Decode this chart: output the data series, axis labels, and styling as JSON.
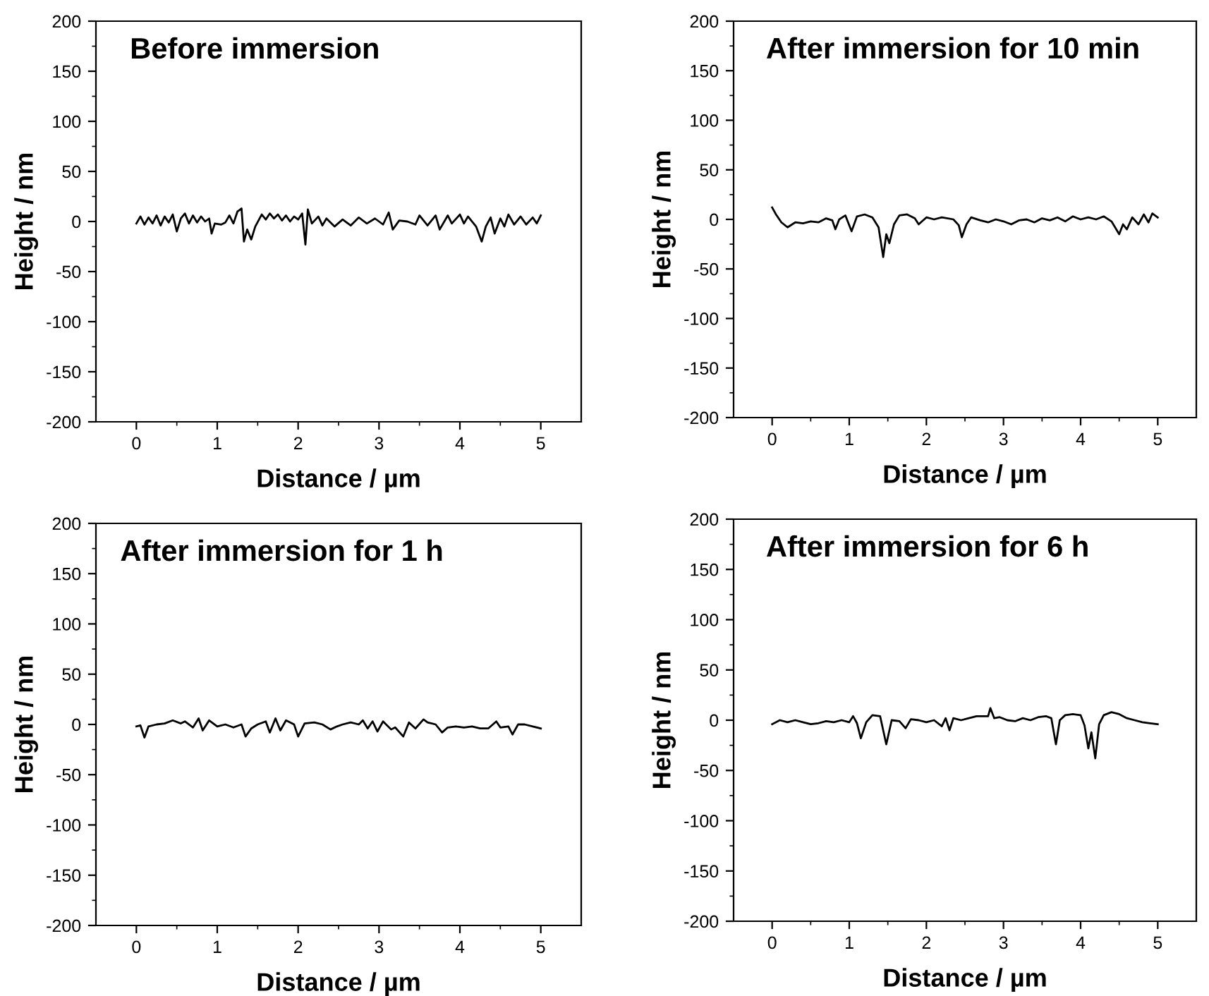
{
  "chart_data": [
    {
      "type": "line",
      "title": "Before immersion",
      "xlabel": "Distance / µm",
      "ylabel": "Height / nm",
      "xlim": [
        -0.5,
        5.5
      ],
      "ylim": [
        -200,
        200
      ],
      "xticks": [
        0,
        {
          "value": 0.5,
          "label": null
        },
        1,
        {
          "value": 1.5,
          "label": null
        },
        2,
        {
          "value": 2.5,
          "label": null
        },
        3,
        {
          "value": 3.5,
          "label": null
        },
        4,
        {
          "value": 4.5,
          "label": null
        },
        5
      ],
      "yticks": [
        -200,
        {
          "value": -175,
          "label": null
        },
        -150,
        {
          "value": -125,
          "label": null
        },
        -100,
        {
          "value": -75,
          "label": null
        },
        -50,
        {
          "value": -25,
          "label": null
        },
        0,
        {
          "value": 25,
          "label": null
        },
        50,
        {
          "value": 75,
          "label": null
        },
        100,
        {
          "value": 125,
          "label": null
        },
        150,
        {
          "value": 175,
          "label": null
        },
        200
      ],
      "grid": false,
      "legend": false,
      "series": [
        {
          "color": "#000000",
          "x": [
            0,
            0.05,
            0.1,
            0.15,
            0.2,
            0.25,
            0.3,
            0.35,
            0.4,
            0.45,
            0.5,
            0.55,
            0.6,
            0.65,
            0.7,
            0.75,
            0.8,
            0.85,
            0.9,
            0.93,
            0.97,
            1.05,
            1.1,
            1.15,
            1.2,
            1.25,
            1.3,
            1.33,
            1.37,
            1.42,
            1.47,
            1.55,
            1.6,
            1.65,
            1.7,
            1.75,
            1.8,
            1.85,
            1.9,
            1.95,
            2.0,
            2.05,
            2.09,
            2.12,
            2.17,
            2.25,
            2.3,
            2.35,
            2.45,
            2.55,
            2.65,
            2.75,
            2.85,
            2.95,
            3.05,
            3.12,
            3.17,
            3.25,
            3.35,
            3.45,
            3.5,
            3.6,
            3.7,
            3.75,
            3.85,
            3.9,
            4.0,
            4.05,
            4.1,
            4.2,
            4.27,
            4.32,
            4.38,
            4.43,
            4.5,
            4.55,
            4.6,
            4.67,
            4.75,
            4.82,
            4.9,
            4.95,
            5.0
          ],
          "values": [
            -2,
            5,
            -3,
            4,
            -2,
            6,
            -4,
            5,
            -1,
            7,
            -10,
            3,
            8,
            -2,
            6,
            -1,
            5,
            0,
            3,
            -12,
            -2,
            -3,
            -1,
            6,
            -2,
            10,
            13,
            -20,
            -8,
            -18,
            -5,
            7,
            2,
            8,
            3,
            7,
            1,
            6,
            0,
            5,
            2,
            8,
            -23,
            12,
            -2,
            5,
            -4,
            3,
            -5,
            2,
            -4,
            4,
            -2,
            3,
            -3,
            9,
            -8,
            1,
            0,
            -3,
            6,
            -4,
            6,
            -8,
            6,
            -2,
            7,
            -2,
            5,
            -5,
            -20,
            -5,
            4,
            -12,
            3,
            -5,
            7,
            -3,
            5,
            -3,
            4,
            -2,
            6
          ]
        }
      ]
    },
    {
      "type": "line",
      "title": "After immersion for 10 min",
      "xlabel": "Distance / µm",
      "ylabel": "Height / nm",
      "xlim": [
        -0.5,
        5.5
      ],
      "ylim": [
        -200,
        200
      ],
      "xticks": [
        0,
        {
          "value": 0.5,
          "label": null
        },
        1,
        {
          "value": 1.5,
          "label": null
        },
        2,
        {
          "value": 2.5,
          "label": null
        },
        3,
        {
          "value": 3.5,
          "label": null
        },
        4,
        {
          "value": 4.5,
          "label": null
        },
        5
      ],
      "yticks": [
        -200,
        {
          "value": -175,
          "label": null
        },
        -150,
        {
          "value": -125,
          "label": null
        },
        -100,
        {
          "value": -75,
          "label": null
        },
        -50,
        {
          "value": -25,
          "label": null
        },
        0,
        {
          "value": 25,
          "label": null
        },
        50,
        {
          "value": 75,
          "label": null
        },
        100,
        {
          "value": 125,
          "label": null
        },
        150,
        {
          "value": 175,
          "label": null
        },
        200
      ],
      "grid": false,
      "legend": false,
      "series": [
        {
          "color": "#000000",
          "x": [
            0,
            0.05,
            0.12,
            0.2,
            0.3,
            0.4,
            0.5,
            0.6,
            0.7,
            0.78,
            0.82,
            0.87,
            0.95,
            1.03,
            1.1,
            1.2,
            1.3,
            1.38,
            1.44,
            1.48,
            1.52,
            1.58,
            1.65,
            1.75,
            1.85,
            1.9,
            2.0,
            2.1,
            2.2,
            2.35,
            2.42,
            2.46,
            2.52,
            2.58,
            2.7,
            2.8,
            2.9,
            3.0,
            3.1,
            3.2,
            3.3,
            3.4,
            3.5,
            3.6,
            3.7,
            3.8,
            3.9,
            4.0,
            4.1,
            4.2,
            4.3,
            4.4,
            4.5,
            4.55,
            4.6,
            4.67,
            4.75,
            4.82,
            4.88,
            4.93,
            5.0
          ],
          "values": [
            12,
            5,
            -3,
            -8,
            -3,
            -4,
            -2,
            -3,
            1,
            -1,
            -10,
            0,
            4,
            -12,
            3,
            5,
            2,
            -8,
            -38,
            -15,
            -24,
            -5,
            4,
            5,
            1,
            -5,
            2,
            0,
            2,
            0,
            -6,
            -18,
            -5,
            2,
            -1,
            -3,
            0,
            -2,
            -5,
            -1,
            0,
            -3,
            1,
            -1,
            2,
            -2,
            3,
            0,
            2,
            0,
            3,
            -2,
            -15,
            -5,
            -10,
            2,
            -5,
            5,
            -3,
            6,
            2
          ]
        }
      ]
    },
    {
      "type": "line",
      "title": "After immersion for 1 h",
      "xlabel": "Distance / µm",
      "ylabel": "Height / nm",
      "xlim": [
        -0.5,
        5.5
      ],
      "ylim": [
        -200,
        200
      ],
      "xticks": [
        0,
        {
          "value": 0.5,
          "label": null
        },
        1,
        {
          "value": 1.5,
          "label": null
        },
        2,
        {
          "value": 2.5,
          "label": null
        },
        3,
        {
          "value": 3.5,
          "label": null
        },
        4,
        {
          "value": 4.5,
          "label": null
        },
        5
      ],
      "yticks": [
        -200,
        {
          "value": -175,
          "label": null
        },
        -150,
        {
          "value": -125,
          "label": null
        },
        -100,
        {
          "value": -75,
          "label": null
        },
        -50,
        {
          "value": -25,
          "label": null
        },
        0,
        {
          "value": 25,
          "label": null
        },
        50,
        {
          "value": 75,
          "label": null
        },
        100,
        {
          "value": 125,
          "label": null
        },
        150,
        {
          "value": 175,
          "label": null
        },
        200
      ],
      "grid": false,
      "legend": false,
      "series": [
        {
          "color": "#000000",
          "x": [
            0,
            0.05,
            0.1,
            0.15,
            0.25,
            0.35,
            0.45,
            0.55,
            0.6,
            0.7,
            0.77,
            0.82,
            0.9,
            1.0,
            1.1,
            1.2,
            1.3,
            1.35,
            1.42,
            1.5,
            1.6,
            1.65,
            1.72,
            1.78,
            1.85,
            1.95,
            2.0,
            2.08,
            2.2,
            2.3,
            2.4,
            2.48,
            2.55,
            2.65,
            2.75,
            2.8,
            2.86,
            2.92,
            2.98,
            3.05,
            3.15,
            3.2,
            3.3,
            3.37,
            3.45,
            3.55,
            3.6,
            3.7,
            3.78,
            3.85,
            3.95,
            4.05,
            4.15,
            4.25,
            4.35,
            4.45,
            4.5,
            4.6,
            4.65,
            4.72,
            4.8,
            4.9,
            5.0
          ],
          "values": [
            -2,
            -1,
            -13,
            -2,
            0,
            1,
            4,
            1,
            3,
            -3,
            6,
            -6,
            4,
            -2,
            0,
            -3,
            0,
            -12,
            -4,
            0,
            3,
            -8,
            6,
            -6,
            4,
            0,
            -12,
            1,
            2,
            0,
            -5,
            -2,
            0,
            2,
            0,
            4,
            -4,
            3,
            -7,
            3,
            -5,
            -3,
            -12,
            2,
            -4,
            5,
            2,
            0,
            -8,
            -3,
            -2,
            -3,
            -2,
            -4,
            -4,
            3,
            -3,
            -2,
            -10,
            0,
            0,
            -2,
            -4
          ]
        }
      ]
    },
    {
      "type": "line",
      "title": "After immersion for 6 h",
      "xlabel": "Distance / µm",
      "ylabel": "Height / nm",
      "xlim": [
        -0.5,
        5.5
      ],
      "ylim": [
        -200,
        200
      ],
      "xticks": [
        0,
        {
          "value": 0.5,
          "label": null
        },
        1,
        {
          "value": 1.5,
          "label": null
        },
        2,
        {
          "value": 2.5,
          "label": null
        },
        3,
        {
          "value": 3.5,
          "label": null
        },
        4,
        {
          "value": 4.5,
          "label": null
        },
        5
      ],
      "yticks": [
        -200,
        {
          "value": -175,
          "label": null
        },
        -150,
        {
          "value": -125,
          "label": null
        },
        -100,
        {
          "value": -75,
          "label": null
        },
        -50,
        {
          "value": -25,
          "label": null
        },
        0,
        {
          "value": 25,
          "label": null
        },
        50,
        {
          "value": 75,
          "label": null
        },
        100,
        {
          "value": 125,
          "label": null
        },
        150,
        {
          "value": 175,
          "label": null
        },
        200
      ],
      "grid": false,
      "legend": false,
      "series": [
        {
          "color": "#000000",
          "x": [
            0,
            0.1,
            0.2,
            0.3,
            0.4,
            0.5,
            0.6,
            0.7,
            0.8,
            0.9,
            1.0,
            1.05,
            1.1,
            1.15,
            1.22,
            1.3,
            1.4,
            1.48,
            1.55,
            1.65,
            1.73,
            1.8,
            1.9,
            2.0,
            2.1,
            2.2,
            2.25,
            2.3,
            2.35,
            2.45,
            2.55,
            2.65,
            2.8,
            2.83,
            2.88,
            2.95,
            3.05,
            3.15,
            3.25,
            3.35,
            3.45,
            3.55,
            3.62,
            3.68,
            3.73,
            3.8,
            3.9,
            4.0,
            4.05,
            4.1,
            4.14,
            4.19,
            4.24,
            4.3,
            4.4,
            4.5,
            4.6,
            4.7,
            4.8,
            4.9,
            5.0
          ],
          "values": [
            -4,
            0,
            -2,
            0,
            -2,
            -4,
            -3,
            -1,
            -2,
            0,
            -2,
            4,
            -3,
            -18,
            -2,
            5,
            4,
            -24,
            0,
            -1,
            -8,
            1,
            0,
            -2,
            0,
            -6,
            2,
            -10,
            2,
            0,
            2,
            4,
            4,
            12,
            2,
            3,
            0,
            -1,
            2,
            0,
            3,
            4,
            2,
            -24,
            0,
            5,
            6,
            5,
            -5,
            -28,
            -12,
            -38,
            -4,
            5,
            8,
            6,
            2,
            0,
            -2,
            -3,
            -4
          ]
        }
      ]
    }
  ]
}
